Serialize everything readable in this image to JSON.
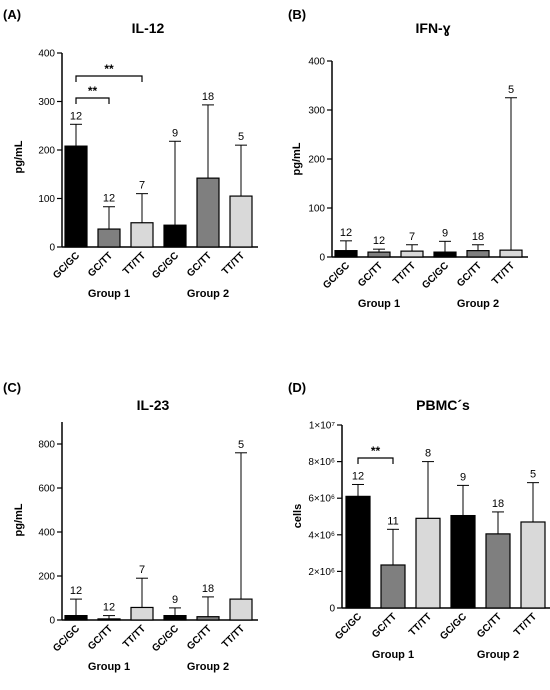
{
  "categories": [
    "GC/GC",
    "GC/TT",
    "TT/TT",
    "GC/GC",
    "GC/TT",
    "TT/TT"
  ],
  "groups": [
    "Group 1",
    "Group 2"
  ],
  "colors": {
    "GC/GC": "#000000",
    "GC/TT": "#7f7f7f",
    "TT/TT": "#d9d9d9",
    "line": "#000000"
  },
  "chart_data": [
    {
      "panel": "(A)",
      "type": "bar",
      "title": "IL-12",
      "ylabel": "pg/mL",
      "ylim": [
        0,
        400
      ],
      "yticks": [
        "0",
        "100",
        "200",
        "300",
        "400"
      ],
      "yticks_values": [
        0,
        100,
        200,
        300,
        400
      ],
      "categories": [
        "GC/GC",
        "GC/TT",
        "TT/TT",
        "GC/GC",
        "GC/TT",
        "TT/TT"
      ],
      "values": [
        208,
        37,
        50,
        45,
        142,
        105
      ],
      "error_upper": [
        253,
        83,
        110,
        218,
        293,
        210
      ],
      "n_labels": [
        "12",
        "12",
        "7",
        "9",
        "18",
        "5"
      ],
      "significance": [
        {
          "from": 0,
          "to": 1,
          "label": "**"
        },
        {
          "from": 0,
          "to": 2,
          "label": "**"
        }
      ]
    },
    {
      "panel": "(B)",
      "type": "bar",
      "title": "IFN-ɣ",
      "ylabel": "pg/mL",
      "ylim": [
        0,
        400
      ],
      "yticks": [
        "0",
        "100",
        "200",
        "300",
        "400"
      ],
      "yticks_values": [
        0,
        100,
        200,
        300,
        400
      ],
      "categories": [
        "GC/GC",
        "GC/TT",
        "TT/TT",
        "GC/GC",
        "GC/TT",
        "TT/TT"
      ],
      "values": [
        13,
        10,
        12,
        10,
        13,
        14
      ],
      "error_upper": [
        33,
        16,
        25,
        32,
        25,
        325
      ],
      "n_labels": [
        "12",
        "12",
        "7",
        "9",
        "18",
        "5"
      ],
      "significance": []
    },
    {
      "panel": "(C)",
      "type": "bar",
      "title": "IL-23",
      "ylabel": "pg/mL",
      "ylim": [
        0,
        900
      ],
      "yticks": [
        "0",
        "200",
        "400",
        "600",
        "800"
      ],
      "yticks_values": [
        0,
        200,
        400,
        600,
        800
      ],
      "categories": [
        "GC/GC",
        "GC/TT",
        "TT/TT",
        "GC/GC",
        "GC/TT",
        "TT/TT"
      ],
      "values": [
        20,
        5,
        57,
        20,
        15,
        95
      ],
      "error_upper": [
        95,
        20,
        190,
        55,
        105,
        760
      ],
      "n_labels": [
        "12",
        "12",
        "7",
        "9",
        "18",
        "5"
      ],
      "significance": []
    },
    {
      "panel": "(D)",
      "type": "bar",
      "title": "PBMC´s",
      "ylabel": "cells",
      "ylim": [
        0,
        10000000
      ],
      "yticks": [
        "0",
        "2×10⁶",
        "4×10⁶",
        "6×10⁶",
        "8×10⁶",
        "1×10⁷"
      ],
      "yticks_values": [
        0,
        2000000,
        4000000,
        6000000,
        8000000,
        10000000
      ],
      "categories": [
        "GC/GC",
        "GC/TT",
        "TT/TT",
        "GC/GC",
        "GC/TT",
        "TT/TT"
      ],
      "values": [
        6100000,
        2350000,
        4900000,
        5050000,
        4050000,
        4700000
      ],
      "error_upper": [
        6750000,
        4300000,
        8000000,
        6700000,
        5250000,
        6850000
      ],
      "n_labels": [
        "12",
        "11",
        "8",
        "9",
        "18",
        "5"
      ],
      "significance": [
        {
          "from": 0,
          "to": 1,
          "label": "**"
        }
      ]
    }
  ]
}
